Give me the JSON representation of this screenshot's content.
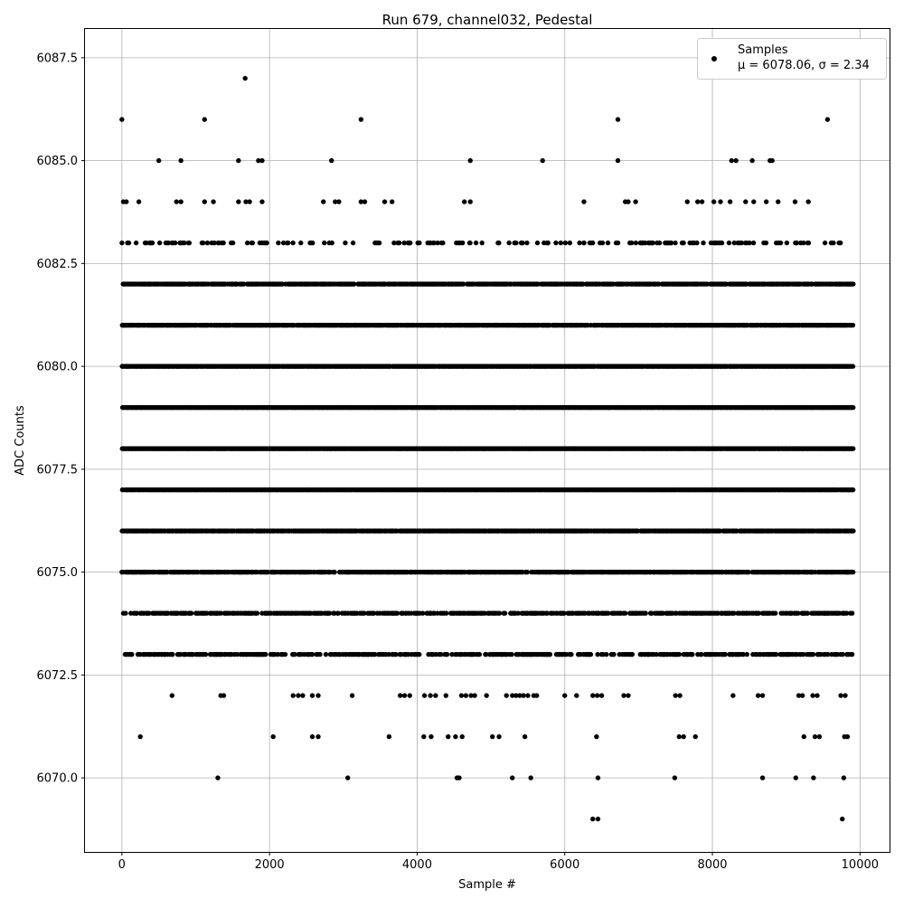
{
  "chart_data": {
    "type": "scatter",
    "title": "Run 679, channel032, Pedestal",
    "xlabel": "Sample #",
    "ylabel": "ADC Counts",
    "xlim": [
      -500,
      10400
    ],
    "ylim": [
      6068.2,
      6088.2
    ],
    "grid": true,
    "legend_position": "top-right",
    "marker_color": "#000000",
    "x_ticks": [
      0,
      2000,
      4000,
      6000,
      8000,
      10000
    ],
    "x_tick_labels": [
      "0",
      "2000",
      "4000",
      "6000",
      "8000",
      "10000"
    ],
    "y_ticks": [
      6070.0,
      6072.5,
      6075.0,
      6077.5,
      6080.0,
      6082.5,
      6085.0,
      6087.5
    ],
    "y_tick_labels": [
      "6070.0",
      "6072.5",
      "6075.0",
      "6077.5",
      "6080.0",
      "6082.5",
      "6085.0",
      "6087.5"
    ],
    "series": [
      {
        "name": "Samples",
        "legend_stats": "μ = 6078.06, σ = 2.34",
        "points": [
          [
            0,
            6086
          ],
          [
            1120,
            6086
          ],
          [
            3240,
            6086
          ],
          [
            6720,
            6086
          ],
          [
            9560,
            6086
          ],
          [
            1670,
            6087
          ],
          [
            500,
            6085
          ],
          [
            800,
            6085
          ],
          [
            1580,
            6085
          ],
          [
            1850,
            6085
          ],
          [
            1900,
            6085
          ],
          [
            2840,
            6085
          ],
          [
            4720,
            6085
          ],
          [
            5700,
            6085
          ],
          [
            6720,
            6085
          ],
          [
            8260,
            6085
          ],
          [
            8320,
            6085
          ],
          [
            8540,
            6085
          ],
          [
            8780,
            6085
          ],
          [
            8810,
            6085
          ],
          [
            20,
            6084
          ],
          [
            60,
            6084
          ],
          [
            230,
            6084
          ],
          [
            740,
            6084
          ],
          [
            800,
            6084
          ],
          [
            1120,
            6084
          ],
          [
            1240,
            6084
          ],
          [
            1580,
            6084
          ],
          [
            1680,
            6084
          ],
          [
            1730,
            6084
          ],
          [
            1900,
            6084
          ],
          [
            2730,
            6084
          ],
          [
            2890,
            6084
          ],
          [
            2940,
            6084
          ],
          [
            3240,
            6084
          ],
          [
            3290,
            6084
          ],
          [
            3560,
            6084
          ],
          [
            3660,
            6084
          ],
          [
            4640,
            6084
          ],
          [
            4720,
            6084
          ],
          [
            6260,
            6084
          ],
          [
            6820,
            6084
          ],
          [
            6860,
            6084
          ],
          [
            6960,
            6084
          ],
          [
            7660,
            6084
          ],
          [
            7800,
            6084
          ],
          [
            7860,
            6084
          ],
          [
            8020,
            6084
          ],
          [
            8110,
            6084
          ],
          [
            8240,
            6084
          ],
          [
            8450,
            6084
          ],
          [
            8560,
            6084
          ],
          [
            8730,
            6084
          ],
          [
            8890,
            6084
          ],
          [
            9120,
            6084
          ],
          [
            9300,
            6084
          ],
          [
            9610,
            6083
          ],
          [
            3890,
            6083
          ],
          [
            4030,
            6083
          ],
          [
            4180,
            6083
          ],
          [
            4330,
            6083
          ],
          [
            5410,
            6083
          ],
          [
            5760,
            6083
          ],
          [
            5880,
            6083
          ],
          [
            6260,
            6083
          ],
          [
            7050,
            6083
          ],
          [
            7180,
            6083
          ],
          [
            7380,
            6083
          ],
          [
            9140,
            6083
          ],
          [
            9290,
            6083
          ],
          [
            6380,
            6069
          ],
          [
            6450,
            6069
          ],
          [
            9760,
            6069
          ],
          [
            1300,
            6070
          ],
          [
            3060,
            6070
          ],
          [
            4540,
            6070
          ],
          [
            4570,
            6070
          ],
          [
            5290,
            6070
          ],
          [
            5540,
            6070
          ],
          [
            6450,
            6070
          ],
          [
            7490,
            6070
          ],
          [
            8680,
            6070
          ],
          [
            9130,
            6070
          ],
          [
            9370,
            6070
          ],
          [
            9780,
            6070
          ],
          [
            250,
            6071
          ],
          [
            2050,
            6071
          ],
          [
            2580,
            6071
          ],
          [
            2660,
            6071
          ],
          [
            3620,
            6071
          ],
          [
            4090,
            6071
          ],
          [
            4190,
            6071
          ],
          [
            4420,
            6071
          ],
          [
            4520,
            6071
          ],
          [
            4610,
            6071
          ],
          [
            5020,
            6071
          ],
          [
            5110,
            6071
          ],
          [
            5460,
            6071
          ],
          [
            6430,
            6071
          ],
          [
            7550,
            6071
          ],
          [
            7610,
            6071
          ],
          [
            7770,
            6071
          ],
          [
            9240,
            6071
          ],
          [
            9390,
            6071
          ],
          [
            9450,
            6071
          ],
          [
            9790,
            6071
          ],
          [
            9830,
            6071
          ],
          [
            680,
            6072
          ],
          [
            1340,
            6072
          ],
          [
            1380,
            6072
          ],
          [
            3120,
            6072
          ],
          [
            2320,
            6072
          ],
          [
            2390,
            6072
          ],
          [
            2450,
            6072
          ],
          [
            2580,
            6072
          ],
          [
            2660,
            6072
          ],
          [
            3770,
            6072
          ],
          [
            3830,
            6072
          ],
          [
            3900,
            6072
          ],
          [
            4100,
            6072
          ],
          [
            4180,
            6072
          ],
          [
            4250,
            6072
          ],
          [
            4390,
            6072
          ],
          [
            4600,
            6072
          ],
          [
            4660,
            6072
          ],
          [
            4730,
            6072
          ],
          [
            4780,
            6072
          ],
          [
            4940,
            6072
          ],
          [
            5210,
            6072
          ],
          [
            5290,
            6072
          ],
          [
            5340,
            6072
          ],
          [
            5390,
            6072
          ],
          [
            5440,
            6072
          ],
          [
            5500,
            6072
          ],
          [
            5580,
            6072
          ],
          [
            5620,
            6072
          ],
          [
            6000,
            6072
          ],
          [
            6160,
            6072
          ],
          [
            6380,
            6072
          ],
          [
            6440,
            6072
          ],
          [
            6500,
            6072
          ],
          [
            6800,
            6072
          ],
          [
            6860,
            6072
          ],
          [
            7500,
            6072
          ],
          [
            7560,
            6072
          ],
          [
            8280,
            6072
          ],
          [
            8620,
            6072
          ],
          [
            8680,
            6072
          ],
          [
            9170,
            6072
          ],
          [
            9220,
            6072
          ],
          [
            9360,
            6072
          ],
          [
            9420,
            6072
          ],
          [
            9740,
            6072
          ],
          [
            9800,
            6072
          ],
          [
            50,
            6074
          ],
          [
            200,
            6074
          ],
          [
            1280,
            6074
          ],
          [
            1600,
            6074
          ],
          [
            1760,
            6074
          ],
          [
            2100,
            6074
          ],
          [
            6750,
            6074
          ],
          [
            6950,
            6074
          ],
          [
            7400,
            6074
          ],
          [
            8180,
            6074
          ],
          [
            8600,
            6074
          ],
          [
            9520,
            6074
          ],
          [
            9870,
            6074
          ],
          [
            620,
            6073
          ],
          [
            1330,
            6073
          ],
          [
            2050,
            6073
          ],
          [
            3520,
            6073
          ],
          [
            7050,
            6073
          ],
          [
            7130,
            6073
          ],
          [
            8140,
            6073
          ],
          [
            8350,
            6073
          ],
          [
            8700,
            6073
          ],
          [
            9880,
            6073
          ],
          [
            140,
            6075
          ],
          [
            320,
            6075
          ],
          [
            1620,
            6075
          ],
          [
            3700,
            6075
          ],
          [
            8350,
            6075
          ],
          [
            9820,
            6075
          ]
        ],
        "dense_levels": [
          {
            "y": 6082,
            "coverage": 0.82
          },
          {
            "y": 6081,
            "coverage": 0.88
          },
          {
            "y": 6080,
            "coverage": 0.97
          },
          {
            "y": 6079,
            "coverage": 0.99
          },
          {
            "y": 6078,
            "coverage": 0.99
          },
          {
            "y": 6077,
            "coverage": 0.99
          },
          {
            "y": 6076,
            "coverage": 0.9
          },
          {
            "y": 6075,
            "coverage": 0.8
          },
          {
            "y": 6074,
            "coverage": 0.55
          },
          {
            "y": 6073,
            "coverage": 0.45
          },
          {
            "y": 6083,
            "coverage": 0.22
          }
        ]
      }
    ]
  }
}
